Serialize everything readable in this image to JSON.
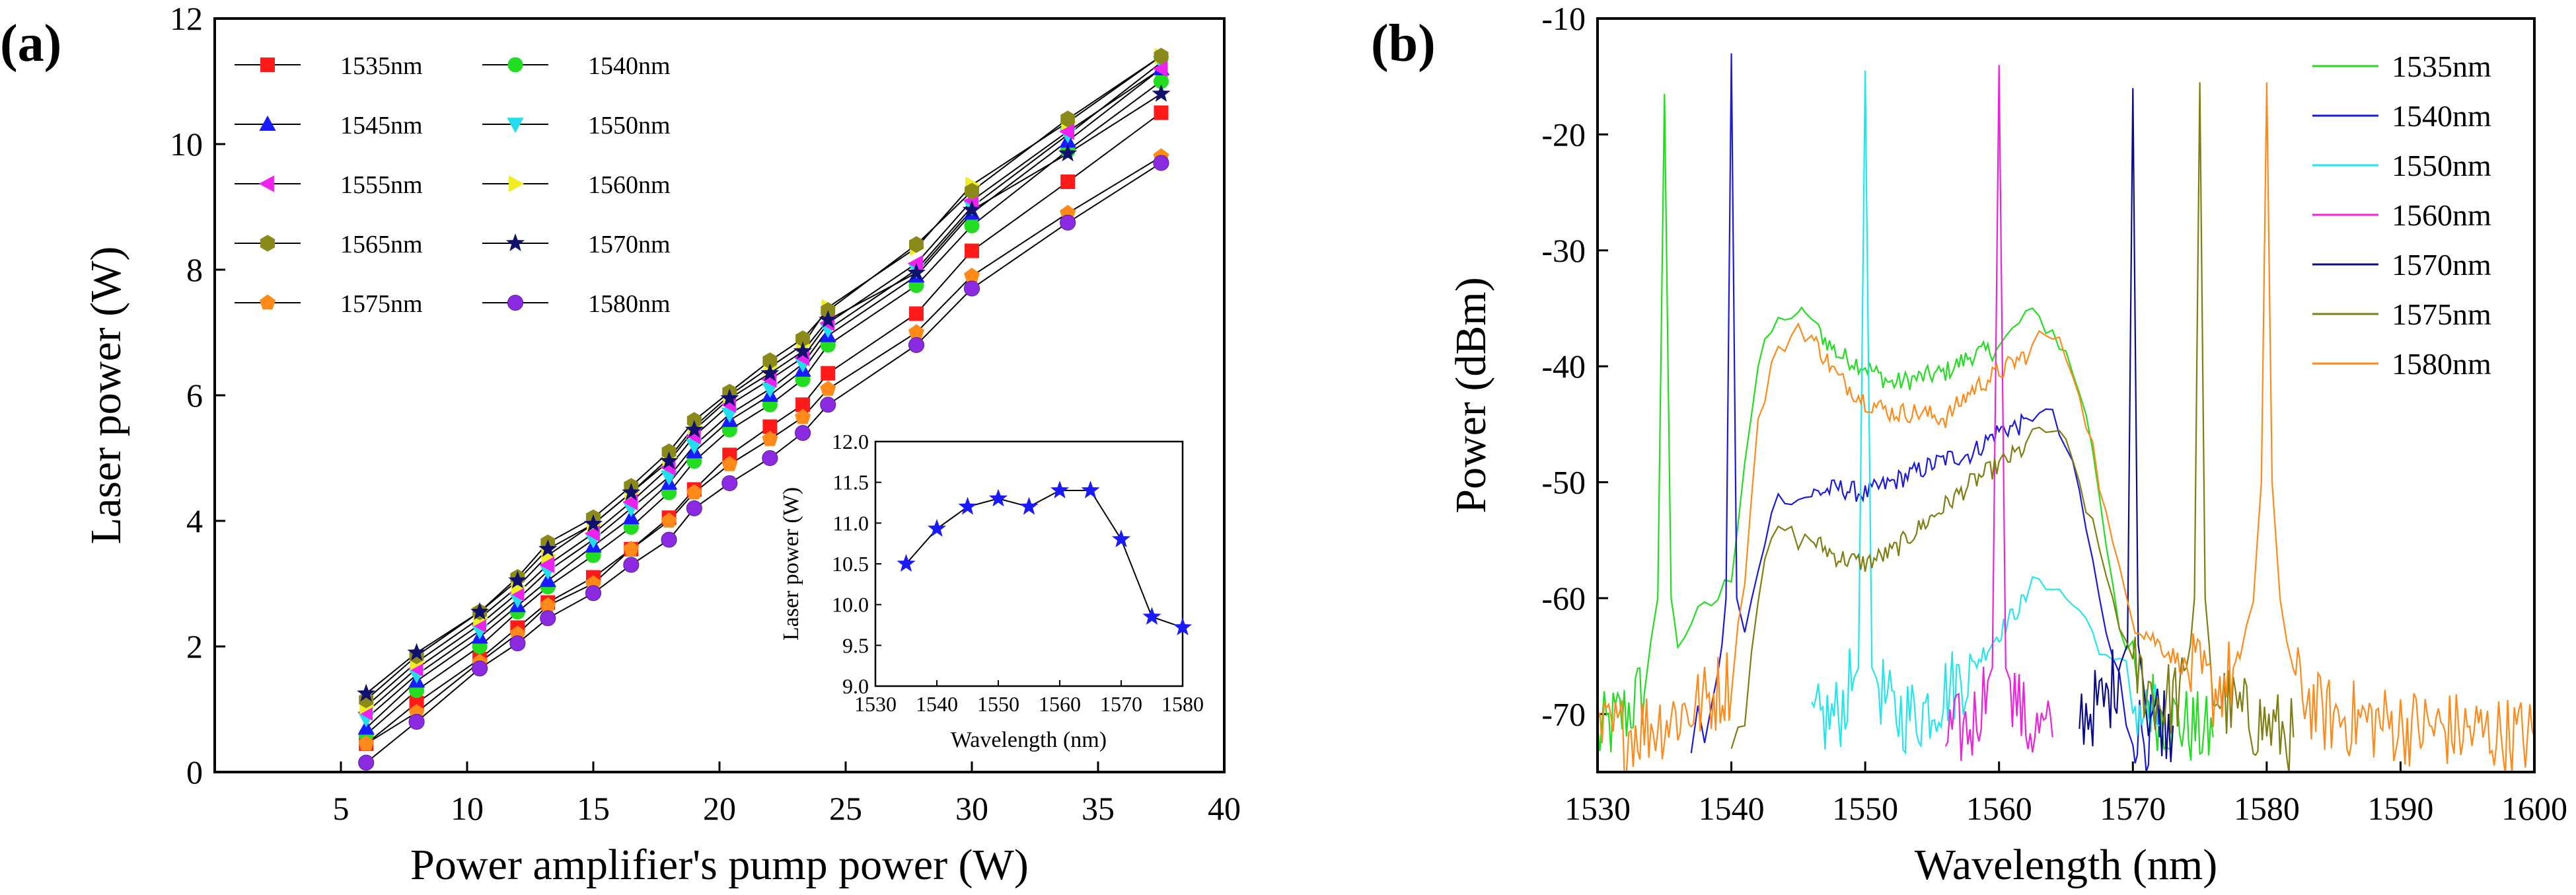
{
  "chart_data": [
    {
      "type": "line",
      "panel_label": "(a)",
      "xlabel": "Power amplifier's pump power (W)",
      "ylabel": "Laser power (W)",
      "xlim": [
        0,
        40
      ],
      "ylim": [
        0,
        12
      ],
      "xticks": [
        5,
        10,
        15,
        20,
        25,
        30,
        35,
        40
      ],
      "yticks": [
        0,
        2,
        4,
        6,
        8,
        10,
        12
      ],
      "x": [
        6,
        8,
        10.5,
        12,
        13.2,
        15,
        16.5,
        18,
        19,
        20.4,
        22,
        23.3,
        24.3,
        27.8,
        30,
        33.8,
        37.5
      ],
      "series": [
        {
          "name": "1535nm",
          "color": "#ff1a1a",
          "marker": "square",
          "values": [
            0.45,
            1.1,
            1.8,
            2.3,
            2.7,
            3.1,
            3.55,
            4.05,
            4.5,
            5.05,
            5.5,
            5.85,
            6.35,
            7.3,
            8.3,
            9.4,
            10.5
          ]
        },
        {
          "name": "1540nm",
          "color": "#22dd22",
          "marker": "circle",
          "values": [
            0.6,
            1.3,
            2.0,
            2.55,
            2.95,
            3.45,
            3.9,
            4.45,
            4.95,
            5.45,
            5.85,
            6.25,
            6.8,
            7.75,
            8.7,
            9.9,
            11.0
          ]
        },
        {
          "name": "1545nm",
          "color": "#1a1aff",
          "marker": "triangle-up",
          "values": [
            0.7,
            1.45,
            2.15,
            2.65,
            3.05,
            3.6,
            4.05,
            4.6,
            5.1,
            5.6,
            6.0,
            6.4,
            6.95,
            7.9,
            8.9,
            10.05,
            11.2
          ]
        },
        {
          "name": "1550nm",
          "color": "#22ddee",
          "marker": "triangle-down",
          "values": [
            0.85,
            1.55,
            2.25,
            2.75,
            3.2,
            3.7,
            4.2,
            4.7,
            5.2,
            5.7,
            6.1,
            6.5,
            7.05,
            8.0,
            9.0,
            10.15,
            11.3
          ]
        },
        {
          "name": "1555nm",
          "color": "#ee22ee",
          "marker": "triangle-left",
          "values": [
            0.95,
            1.65,
            2.35,
            2.85,
            3.3,
            3.8,
            4.3,
            4.85,
            5.35,
            5.85,
            6.25,
            6.6,
            7.15,
            8.1,
            9.1,
            10.2,
            11.2
          ]
        },
        {
          "name": "1560nm",
          "color": "#eeee22",
          "marker": "triangle-right",
          "values": [
            1.05,
            1.75,
            2.45,
            2.95,
            3.45,
            3.95,
            4.45,
            5.0,
            5.5,
            6.0,
            6.45,
            6.8,
            7.4,
            8.35,
            9.35,
            10.35,
            11.4
          ]
        },
        {
          "name": "1565nm",
          "color": "#8a8a1a",
          "marker": "hexagon",
          "values": [
            1.15,
            1.85,
            2.55,
            3.1,
            3.65,
            4.05,
            4.55,
            5.1,
            5.6,
            6.05,
            6.55,
            6.9,
            7.35,
            8.4,
            9.25,
            10.4,
            11.4
          ]
        },
        {
          "name": "1570nm",
          "color": "#10106e",
          "marker": "star",
          "values": [
            1.25,
            1.9,
            2.55,
            3.05,
            3.55,
            3.95,
            4.45,
            4.95,
            5.45,
            5.95,
            6.35,
            6.7,
            7.2,
            7.95,
            8.95,
            9.85,
            10.8
          ]
        },
        {
          "name": "1575nm",
          "color": "#ff8a1a",
          "marker": "pentagon",
          "values": [
            0.45,
            0.95,
            1.75,
            2.2,
            2.65,
            3.0,
            3.55,
            4.0,
            4.45,
            4.9,
            5.3,
            5.65,
            6.1,
            7.0,
            7.9,
            8.9,
            9.8
          ]
        },
        {
          "name": "1580nm",
          "color": "#8a2be2",
          "marker": "ball",
          "values": [
            0.15,
            0.8,
            1.65,
            2.05,
            2.45,
            2.85,
            3.3,
            3.7,
            4.2,
            4.6,
            5.0,
            5.4,
            5.85,
            6.8,
            7.7,
            8.75,
            9.7
          ]
        }
      ],
      "inset": {
        "type": "line",
        "xlabel": "Wavelength (nm)",
        "ylabel": "Laser power (W)",
        "xlim": [
          1530,
          1580
        ],
        "ylim": [
          9.0,
          12.0
        ],
        "xticks": [
          1530,
          1540,
          1550,
          1560,
          1570,
          1580
        ],
        "yticks": [
          "9.0",
          "9.5",
          "10.0",
          "10.5",
          "11.0",
          "11.5",
          "12.0"
        ],
        "x": [
          1535,
          1540,
          1545,
          1550,
          1555,
          1560,
          1565,
          1570,
          1575,
          1580
        ],
        "values": [
          10.5,
          10.93,
          11.2,
          11.3,
          11.2,
          11.4,
          11.4,
          10.8,
          9.85,
          9.72
        ],
        "color": "#1a1aff",
        "marker": "star"
      }
    },
    {
      "type": "line",
      "panel_label": "(b)",
      "xlabel": "Wavelength (nm)",
      "ylabel": "Power (dBm)",
      "xlim": [
        1530,
        1600
      ],
      "ylim": [
        -75,
        -10
      ],
      "xticks": [
        1530,
        1540,
        1550,
        1560,
        1570,
        1580,
        1590,
        1600
      ],
      "yticks": [
        -10,
        -20,
        -30,
        -40,
        -50,
        -60,
        -70
      ],
      "series": [
        {
          "name": "1535nm",
          "color": "#22dd22",
          "peak_nm": 1535,
          "peak_dbm": -16.5,
          "points": [
            [
              1530,
              -72
            ],
            [
              1532,
              -70
            ],
            [
              1533.5,
              -68
            ],
            [
              1534.5,
              -60
            ],
            [
              1535,
              -16.5
            ],
            [
              1535.5,
              -60
            ],
            [
              1536,
              -64
            ],
            [
              1537,
              -62
            ],
            [
              1538,
              -61
            ],
            [
              1539,
              -60
            ],
            [
              1540,
              -58
            ],
            [
              1541,
              -48
            ],
            [
              1542,
              -40
            ],
            [
              1543,
              -37
            ],
            [
              1544,
              -35.5
            ],
            [
              1545,
              -36
            ],
            [
              1545.5,
              -35
            ],
            [
              1546.5,
              -37
            ],
            [
              1548,
              -39
            ],
            [
              1550,
              -40
            ],
            [
              1552,
              -41.5
            ],
            [
              1554,
              -41
            ],
            [
              1556,
              -40.5
            ],
            [
              1558,
              -39
            ],
            [
              1560,
              -38.5
            ],
            [
              1561,
              -37
            ],
            [
              1562,
              -35.5
            ],
            [
              1563,
              -36
            ],
            [
              1564,
              -37
            ],
            [
              1565,
              -39
            ],
            [
              1566,
              -42
            ],
            [
              1567,
              -47
            ],
            [
              1568,
              -55
            ],
            [
              1569,
              -62
            ],
            [
              1570,
              -67
            ],
            [
              1572,
              -70
            ],
            [
              1574,
              -71
            ],
            [
              1576,
              -72
            ]
          ]
        },
        {
          "name": "1540nm",
          "color": "#1a1adc",
          "peak_nm": 1540,
          "peak_dbm": -13,
          "points": [
            [
              1537,
              -72
            ],
            [
              1538,
              -71
            ],
            [
              1539,
              -68
            ],
            [
              1539.6,
              -60
            ],
            [
              1540,
              -13
            ],
            [
              1540.4,
              -60
            ],
            [
              1541,
              -63
            ],
            [
              1542,
              -58
            ],
            [
              1543,
              -52
            ],
            [
              1544,
              -51
            ],
            [
              1545,
              -51.5
            ],
            [
              1546,
              -51
            ],
            [
              1548,
              -50.5
            ],
            [
              1550,
              -51
            ],
            [
              1552,
              -50
            ],
            [
              1554,
              -49
            ],
            [
              1556,
              -48
            ],
            [
              1558,
              -47.5
            ],
            [
              1560,
              -45.5
            ],
            [
              1562,
              -45
            ],
            [
              1563,
              -43.5
            ],
            [
              1564,
              -44.5
            ],
            [
              1565,
              -47
            ],
            [
              1566,
              -51
            ],
            [
              1567,
              -57
            ],
            [
              1568,
              -63
            ],
            [
              1569,
              -68
            ],
            [
              1570,
              -71
            ],
            [
              1572,
              -72
            ]
          ]
        },
        {
          "name": "1550nm",
          "color": "#22e6ee",
          "peak_nm": 1550,
          "peak_dbm": -14.5,
          "points": [
            [
              1546,
              -71
            ],
            [
              1548,
              -70
            ],
            [
              1549.5,
              -66
            ],
            [
              1550,
              -14.5
            ],
            [
              1550.5,
              -66
            ],
            [
              1552,
              -70
            ],
            [
              1554,
              -70
            ],
            [
              1556,
              -68
            ],
            [
              1558,
              -66
            ],
            [
              1560,
              -63
            ],
            [
              1562,
              -60
            ],
            [
              1563,
              -58
            ],
            [
              1564,
              -59
            ],
            [
              1565,
              -60
            ],
            [
              1566,
              -61
            ],
            [
              1567,
              -63
            ],
            [
              1568,
              -65
            ],
            [
              1569,
              -67
            ],
            [
              1570,
              -69
            ],
            [
              1572,
              -71
            ]
          ]
        },
        {
          "name": "1560nm",
          "color": "#ee22dd",
          "peak_nm": 1560,
          "peak_dbm": -14,
          "points": [
            [
              1556,
              -72
            ],
            [
              1558,
              -71
            ],
            [
              1559.5,
              -66
            ],
            [
              1560,
              -14
            ],
            [
              1560.5,
              -66
            ],
            [
              1562,
              -71
            ],
            [
              1564,
              -72
            ]
          ]
        },
        {
          "name": "1570nm",
          "color": "#0c0c8a",
          "peak_nm": 1570,
          "peak_dbm": -16,
          "points": [
            [
              1566,
              -70
            ],
            [
              1568,
              -69
            ],
            [
              1569.6,
              -64
            ],
            [
              1570,
              -16
            ],
            [
              1570.4,
              -64
            ],
            [
              1571,
              -69
            ],
            [
              1573,
              -71
            ]
          ]
        },
        {
          "name": "1575nm",
          "color": "#7e7e12",
          "peak_nm": 1575,
          "peak_dbm": -15.5,
          "points": [
            [
              1540,
              -72
            ],
            [
              1541,
              -68
            ],
            [
              1542,
              -60
            ],
            [
              1543,
              -55
            ],
            [
              1544,
              -54
            ],
            [
              1545,
              -55
            ],
            [
              1546,
              -55
            ],
            [
              1548,
              -56.5
            ],
            [
              1550,
              -57
            ],
            [
              1552,
              -56
            ],
            [
              1554,
              -54
            ],
            [
              1556,
              -52
            ],
            [
              1558,
              -50
            ],
            [
              1560,
              -48.5
            ],
            [
              1562,
              -47
            ],
            [
              1563,
              -45.5
            ],
            [
              1564,
              -45.5
            ],
            [
              1565,
              -47
            ],
            [
              1566,
              -50
            ],
            [
              1567,
              -54
            ],
            [
              1568,
              -58
            ],
            [
              1569,
              -62
            ],
            [
              1570,
              -66
            ],
            [
              1572,
              -69
            ],
            [
              1574,
              -68
            ],
            [
              1574.6,
              -60
            ],
            [
              1575,
              -15.5
            ],
            [
              1575.4,
              -60
            ],
            [
              1576,
              -68
            ],
            [
              1578,
              -70
            ],
            [
              1580,
              -71
            ],
            [
              1582,
              -72
            ]
          ]
        },
        {
          "name": "1580nm",
          "color": "#ff8a1a",
          "peak_nm": 1580,
          "peak_dbm": -15.5,
          "points": [
            [
              1530,
              -72
            ],
            [
              1534,
              -71
            ],
            [
              1536,
              -70
            ],
            [
              1538,
              -69
            ],
            [
              1540,
              -67
            ],
            [
              1541,
              -58
            ],
            [
              1542,
              -45
            ],
            [
              1543,
              -40
            ],
            [
              1544,
              -38
            ],
            [
              1545,
              -36.5
            ],
            [
              1546,
              -37.5
            ],
            [
              1548,
              -41
            ],
            [
              1550,
              -43
            ],
            [
              1552,
              -44
            ],
            [
              1554,
              -44
            ],
            [
              1556,
              -44.5
            ],
            [
              1558,
              -42
            ],
            [
              1560,
              -40.5
            ],
            [
              1562,
              -39
            ],
            [
              1563,
              -37.5
            ],
            [
              1564,
              -37.5
            ],
            [
              1565,
              -39
            ],
            [
              1566,
              -42
            ],
            [
              1567,
              -47
            ],
            [
              1568,
              -53
            ],
            [
              1569,
              -58
            ],
            [
              1570,
              -62
            ],
            [
              1572,
              -64
            ],
            [
              1574,
              -66
            ],
            [
              1576,
              -68
            ],
            [
              1578,
              -66
            ],
            [
              1579,
              -60
            ],
            [
              1579.6,
              -50
            ],
            [
              1580,
              -15.5
            ],
            [
              1580.4,
              -50
            ],
            [
              1581,
              -60
            ],
            [
              1582,
              -67
            ],
            [
              1584,
              -70
            ],
            [
              1590,
              -71
            ],
            [
              1600,
              -72
            ]
          ]
        }
      ]
    }
  ]
}
